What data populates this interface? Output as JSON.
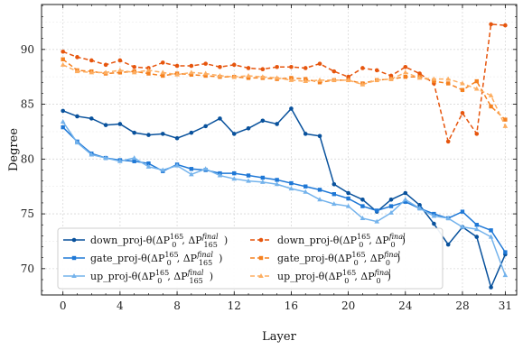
{
  "chart_data": {
    "type": "line",
    "xlabel": "Layer",
    "ylabel": "Degree",
    "xlim": [
      -1.5,
      31.8
    ],
    "ylim": [
      67.6,
      94.1
    ],
    "xticks": [
      0,
      4,
      8,
      12,
      16,
      20,
      24,
      28,
      31
    ],
    "xtick_labels": [
      "0",
      "4",
      "8",
      "12",
      "16",
      "20",
      "24",
      "28",
      "31"
    ],
    "yticks": [
      70,
      75,
      80,
      85,
      90
    ],
    "ytick_labels": [
      "70",
      "75",
      "80",
      "85",
      "90"
    ],
    "grid": true,
    "legend_position": "lower-center",
    "x": [
      0,
      1,
      2,
      3,
      4,
      5,
      6,
      7,
      8,
      9,
      10,
      11,
      12,
      13,
      14,
      15,
      16,
      17,
      18,
      19,
      20,
      21,
      22,
      23,
      24,
      25,
      26,
      27,
      28,
      29,
      30,
      31
    ],
    "series": [
      {
        "name": "down_proj-θ(ΔP0^165, ΔP165^final)",
        "legend": {
          "pre": "down_proj-θ(ΔP",
          "a_sub": "0",
          "a_sup": "165",
          "mid": ", ΔP",
          "b_sub": "165",
          "b_sup": "final",
          "post": ")"
        },
        "color": "#08519c",
        "style": "solid",
        "marker": "circle",
        "values": [
          84.4,
          83.9,
          83.7,
          83.1,
          83.2,
          82.4,
          82.2,
          82.3,
          81.9,
          82.4,
          83.0,
          83.7,
          82.3,
          82.8,
          83.5,
          83.2,
          84.6,
          82.3,
          82.1,
          77.7,
          76.9,
          76.3,
          75.2,
          76.3,
          76.9,
          75.8,
          74.1,
          72.2,
          73.8,
          72.9,
          68.3,
          71.3
        ]
      },
      {
        "name": "gate_proj-θ(ΔP0^165, ΔP165^final)",
        "legend": {
          "pre": "gate_proj-θ(ΔP",
          "a_sub": "0",
          "a_sup": "165",
          "mid": ", ΔP",
          "b_sub": "165",
          "b_sup": "final",
          "post": ")"
        },
        "color": "#1f78d6",
        "style": "solid",
        "marker": "square",
        "values": [
          82.9,
          81.6,
          80.5,
          80.1,
          79.9,
          79.8,
          79.6,
          78.9,
          79.5,
          79.1,
          79.0,
          78.7,
          78.7,
          78.5,
          78.3,
          78.1,
          77.8,
          77.5,
          77.2,
          76.8,
          76.4,
          75.7,
          75.3,
          75.7,
          76.1,
          75.5,
          75.0,
          74.6,
          75.2,
          74.0,
          73.5,
          71.5
        ]
      },
      {
        "name": "up_proj-θ(ΔP0^165, ΔP165^final)",
        "legend": {
          "pre": "up_proj-θ(ΔP",
          "a_sub": "0",
          "a_sup": "165",
          "mid": ", ΔP",
          "b_sub": "165",
          "b_sup": "final",
          "post": ")"
        },
        "color": "#74b3ec",
        "style": "solid",
        "marker": "triangle",
        "values": [
          83.4,
          81.5,
          80.4,
          80.1,
          79.8,
          80.1,
          79.3,
          79.0,
          79.4,
          78.6,
          79.1,
          78.5,
          78.2,
          78.0,
          77.9,
          77.7,
          77.3,
          77.0,
          76.3,
          75.9,
          75.7,
          74.6,
          74.3,
          75.1,
          76.3,
          75.5,
          74.8,
          74.6,
          73.8,
          73.6,
          72.9,
          69.4
        ]
      },
      {
        "name": "down_proj-θ(ΔP0^165, ΔP0^final)",
        "legend": {
          "pre": "down_proj-θ(ΔP",
          "a_sub": "0",
          "a_sup": "165",
          "mid": ", ΔP",
          "b_sub": "0",
          "b_sup": "final",
          "post": ")"
        },
        "color": "#e6550d",
        "style": "dashed",
        "marker": "circle",
        "values": [
          89.8,
          89.3,
          89.0,
          88.6,
          89.0,
          88.4,
          88.3,
          88.8,
          88.5,
          88.5,
          88.7,
          88.4,
          88.6,
          88.3,
          88.2,
          88.4,
          88.4,
          88.3,
          88.7,
          88.0,
          87.5,
          88.3,
          88.1,
          87.6,
          88.4,
          87.8,
          86.9,
          81.6,
          84.2,
          82.3,
          92.3,
          92.2
        ]
      },
      {
        "name": "gate_proj-θ(ΔP0^165, ΔP0^final)",
        "legend": {
          "pre": "gate_proj-θ(ΔP",
          "a_sub": "0",
          "a_sup": "165",
          "mid": ", ΔP",
          "b_sub": "0",
          "b_sup": "final",
          "post": ")"
        },
        "color": "#f5811f",
        "style": "dashed",
        "marker": "square",
        "values": [
          89.1,
          88.1,
          88.0,
          87.8,
          87.9,
          88.0,
          87.8,
          87.6,
          87.8,
          87.7,
          87.6,
          87.5,
          87.5,
          87.4,
          87.4,
          87.3,
          87.4,
          87.3,
          87.0,
          87.2,
          87.2,
          86.9,
          87.2,
          87.3,
          87.5,
          87.5,
          87.1,
          86.9,
          86.3,
          87.1,
          84.8,
          83.6
        ]
      },
      {
        "name": "up_proj-θ(ΔP0^165, ΔP0^final)",
        "legend": {
          "pre": "up_proj-θ(ΔP",
          "a_sub": "0",
          "a_sup": "165",
          "mid": ", ΔP",
          "b_sub": "0",
          "b_sup": "final",
          "post": ")"
        },
        "color": "#fdae61",
        "style": "dashed",
        "marker": "triangle",
        "values": [
          88.6,
          88.0,
          87.9,
          87.9,
          88.1,
          87.9,
          88.1,
          87.9,
          87.7,
          87.9,
          87.8,
          87.6,
          87.5,
          87.6,
          87.5,
          87.4,
          87.2,
          87.1,
          87.2,
          87.2,
          87.2,
          86.8,
          87.2,
          87.3,
          87.9,
          87.4,
          87.3,
          87.3,
          86.9,
          86.4,
          85.8,
          83.0
        ]
      }
    ]
  }
}
